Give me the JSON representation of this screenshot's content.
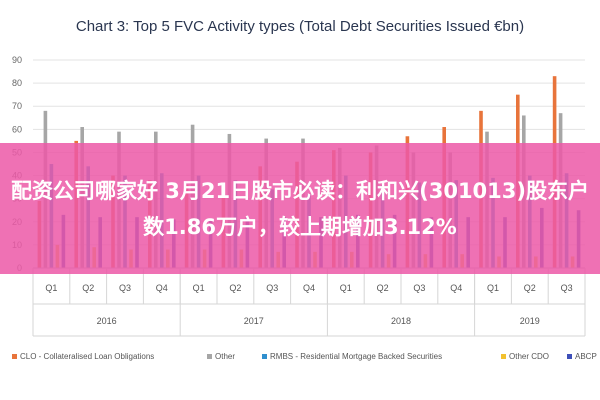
{
  "banner": {
    "text": "配资公司哪家好 3月21日股市必读：利和兴(301013)股东户数1.86万户，较上期增加3.12%"
  },
  "chart_data": {
    "type": "bar",
    "title": "Chart 3: Top 5 FVC Activity types (Total Debt Securities Issued €bn)",
    "ylim": [
      0,
      90
    ],
    "yticks": [
      0,
      10,
      20,
      30,
      40,
      50,
      60,
      70,
      80,
      90
    ],
    "grid": true,
    "legend_position": "bottom",
    "categories": [
      "Q1",
      "Q2",
      "Q3",
      "Q4",
      "Q1",
      "Q2",
      "Q3",
      "Q4",
      "Q1",
      "Q2",
      "Q3",
      "Q4",
      "Q1",
      "Q2",
      "Q3"
    ],
    "years": [
      {
        "label": "2016",
        "start": 0,
        "count": 4
      },
      {
        "label": "2017",
        "start": 4,
        "count": 4
      },
      {
        "label": "2018",
        "start": 8,
        "count": 4
      },
      {
        "label": "2019",
        "start": 12,
        "count": 3
      }
    ],
    "series": [
      {
        "name": "CLO - Collateralised Loan Obligations",
        "color": "#e8743b",
        "values": [
          29,
          55,
          40,
          38,
          36,
          37,
          44,
          46,
          51,
          50,
          57,
          61,
          68,
          75,
          83
        ]
      },
      {
        "name": "Other",
        "color": "#a6a6a6",
        "values": [
          68,
          61,
          59,
          59,
          62,
          58,
          56,
          56,
          52,
          53,
          50,
          50,
          59,
          66,
          67
        ]
      },
      {
        "name": "RMBS - Residential Mortgage Backed Securities",
        "color": "#2f8fce",
        "values": [
          45,
          44,
          40,
          41,
          40,
          38,
          34,
          32,
          40,
          36,
          37,
          38,
          39,
          40,
          41
        ]
      },
      {
        "name": "Other CDO",
        "color": "#f2c12e",
        "values": [
          10,
          9,
          8,
          8,
          8,
          8,
          7,
          7,
          7,
          6,
          6,
          6,
          5,
          5,
          5
        ]
      },
      {
        "name": "ABCP",
        "color": "#3d4fb8",
        "values": [
          23,
          22,
          22,
          21,
          21,
          22,
          22,
          22,
          23,
          23,
          22,
          22,
          22,
          26,
          25
        ]
      }
    ]
  }
}
